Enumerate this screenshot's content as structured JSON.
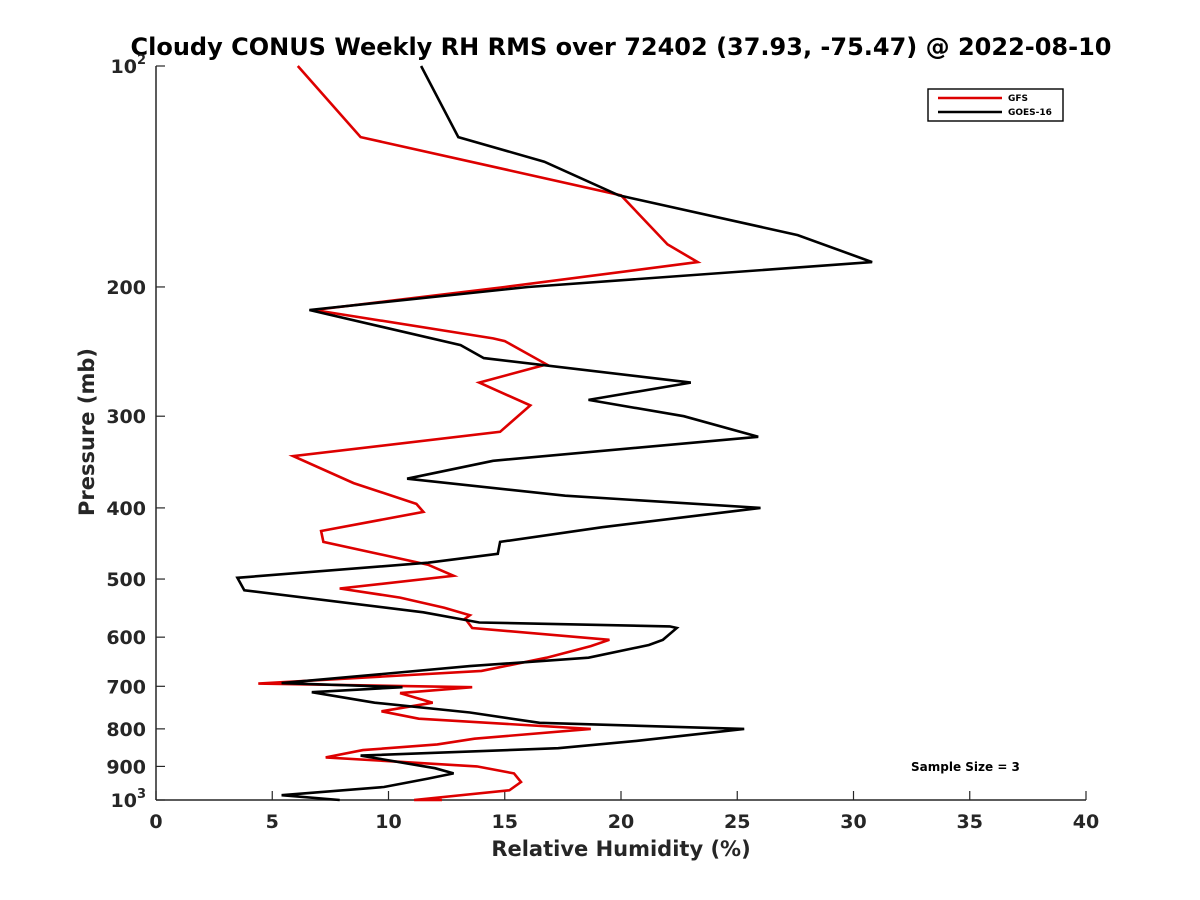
{
  "chart_data": {
    "type": "line",
    "title": "Cloudy CONUS Weekly RH RMS over 72402 (37.93, -75.47) @ 2022-08-10",
    "xlabel": "Relative Humidity (%)",
    "ylabel": "Pressure (mb)",
    "xlim": [
      0,
      40
    ],
    "ylim": [
      100,
      1000
    ],
    "y_scale": "log",
    "y_reversed": true,
    "grid": false,
    "legend_position": "top-right",
    "x_ticks": [
      "0",
      "5",
      "10",
      "15",
      "20",
      "25",
      "30",
      "35",
      "40"
    ],
    "y_ticks": [
      {
        "value": 100,
        "base": "10",
        "exp": "2"
      },
      {
        "value": 200,
        "label": "200"
      },
      {
        "value": 300,
        "label": "300"
      },
      {
        "value": 400,
        "label": "400"
      },
      {
        "value": 500,
        "label": "500"
      },
      {
        "value": 600,
        "label": "600"
      },
      {
        "value": 700,
        "label": "700"
      },
      {
        "value": 800,
        "label": "800"
      },
      {
        "value": 900,
        "label": "900"
      },
      {
        "value": 1000,
        "base": "10",
        "exp": "3"
      }
    ],
    "annotation": "Sample Size = 3",
    "series": [
      {
        "name": "GFS",
        "color": "#dd0000",
        "points": [
          [
            6.1,
            100
          ],
          [
            8.8,
            125
          ],
          [
            20.0,
            150
          ],
          [
            22.0,
            175
          ],
          [
            23.3,
            185
          ],
          [
            15.0,
            200
          ],
          [
            6.8,
            215
          ],
          [
            14.5,
            235
          ],
          [
            15.0,
            237
          ],
          [
            16.8,
            255
          ],
          [
            13.9,
            270
          ],
          [
            16.1,
            290
          ],
          [
            14.8,
            315
          ],
          [
            5.9,
            340
          ],
          [
            8.5,
            370
          ],
          [
            11.2,
            395
          ],
          [
            11.5,
            405
          ],
          [
            7.1,
            430
          ],
          [
            7.2,
            445
          ],
          [
            11.7,
            478
          ],
          [
            12.8,
            495
          ],
          [
            7.9,
            515
          ],
          [
            10.5,
            530
          ],
          [
            12.4,
            547
          ],
          [
            13.5,
            560
          ],
          [
            13.3,
            566
          ],
          [
            13.6,
            583
          ],
          [
            19.5,
            605
          ],
          [
            18.7,
            617
          ],
          [
            16.8,
            640
          ],
          [
            14.0,
            667
          ],
          [
            4.4,
            694
          ],
          [
            13.6,
            702
          ],
          [
            10.5,
            715
          ],
          [
            11.9,
            737
          ],
          [
            9.7,
            757
          ],
          [
            11.3,
            775
          ],
          [
            18.7,
            800
          ],
          [
            13.7,
            825
          ],
          [
            12.1,
            840
          ],
          [
            8.9,
            855
          ],
          [
            7.3,
            875
          ],
          [
            13.8,
            900
          ],
          [
            15.4,
            920
          ],
          [
            15.7,
            945
          ],
          [
            15.2,
            970
          ],
          [
            11.1,
            1000
          ],
          [
            12.3,
            1000
          ]
        ]
      },
      {
        "name": "GOES-16",
        "color": "#000000",
        "points": [
          [
            11.4,
            100
          ],
          [
            13.0,
            125
          ],
          [
            16.7,
            135
          ],
          [
            19.9,
            150
          ],
          [
            27.6,
            170
          ],
          [
            30.8,
            185
          ],
          [
            16.0,
            200
          ],
          [
            6.6,
            215
          ],
          [
            13.1,
            240
          ],
          [
            14.1,
            250
          ],
          [
            23.0,
            270
          ],
          [
            18.6,
            285
          ],
          [
            22.7,
            300
          ],
          [
            25.9,
            320
          ],
          [
            14.5,
            345
          ],
          [
            10.8,
            365
          ],
          [
            17.6,
            385
          ],
          [
            26.0,
            400
          ],
          [
            19.2,
            425
          ],
          [
            14.8,
            445
          ],
          [
            14.7,
            462
          ],
          [
            11.7,
            475
          ],
          [
            3.5,
            498
          ],
          [
            3.8,
            518
          ],
          [
            11.5,
            555
          ],
          [
            13.9,
            573
          ],
          [
            22.1,
            580
          ],
          [
            22.4,
            583
          ],
          [
            21.8,
            605
          ],
          [
            21.2,
            615
          ],
          [
            18.6,
            640
          ],
          [
            13.5,
            657
          ],
          [
            5.4,
            693
          ],
          [
            10.6,
            702
          ],
          [
            6.7,
            713
          ],
          [
            9.4,
            737
          ],
          [
            13.5,
            760
          ],
          [
            16.5,
            785
          ],
          [
            25.3,
            800
          ],
          [
            20.8,
            830
          ],
          [
            17.3,
            850
          ],
          [
            8.8,
            870
          ],
          [
            12.0,
            905
          ],
          [
            12.8,
            920
          ],
          [
            11.7,
            935
          ],
          [
            9.8,
            960
          ],
          [
            5.4,
            985
          ],
          [
            7.9,
            1000
          ]
        ]
      }
    ]
  }
}
